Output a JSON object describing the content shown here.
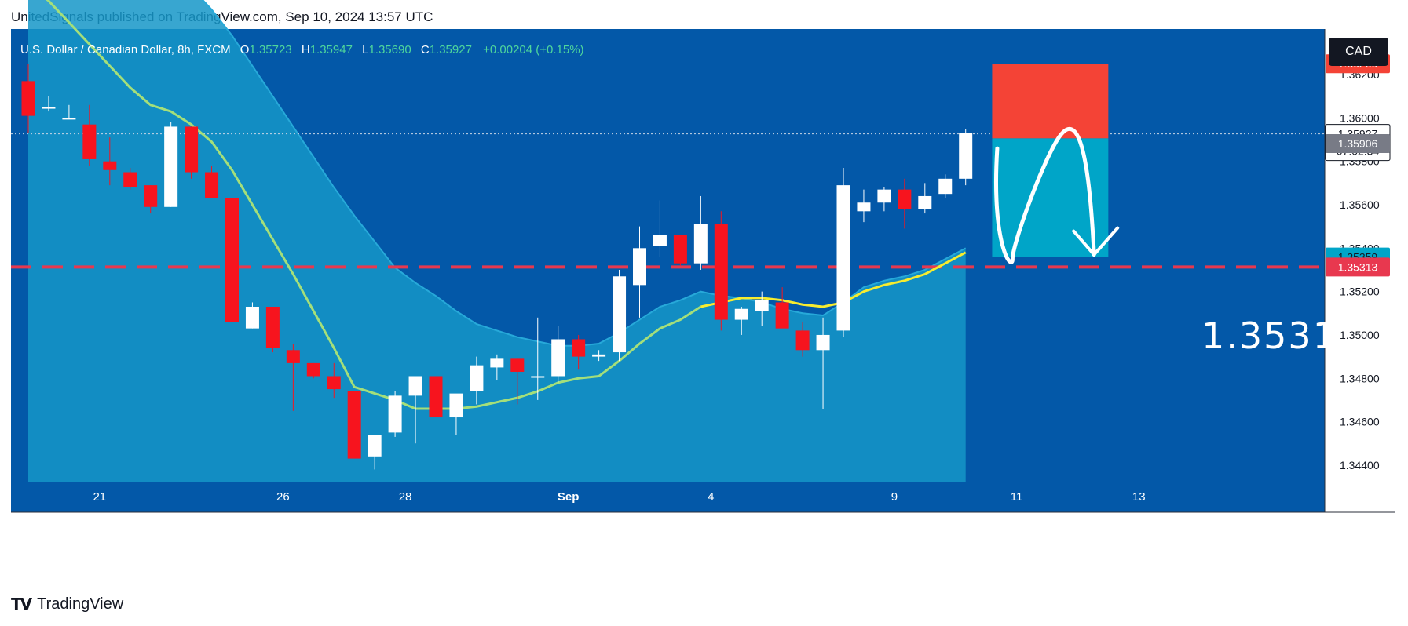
{
  "header": {
    "published_line": "UnitedSignals published on TradingView.com, Sep 10, 2024 13:57 UTC"
  },
  "legend": {
    "symbol": "U.S. Dollar / Canadian Dollar, 8h, FXCM",
    "o_label": "O",
    "o_value": "1.35723",
    "h_label": "H",
    "h_value": "1.35947",
    "l_label": "L",
    "l_value": "1.35690",
    "c_label": "C",
    "c_value": "1.35927",
    "change": "+0.00204 (+0.15%)"
  },
  "currency_button": "CAD",
  "footer": {
    "logo": "TV",
    "name": "TradingView"
  },
  "colors": {
    "background": "#0358a8",
    "band_fill": "#1597c8",
    "up_candle": "#ffffff",
    "down_candle": "#f7141e",
    "ma_green": "#a4df7a",
    "ma_yellow": "#f7ec2f",
    "stop_zone": "#f44336",
    "target_zone": "#00a5c8",
    "dashed_level": "#e8384f"
  },
  "chart_data": {
    "type": "candlestick",
    "y_ticks": [
      "1.34400",
      "1.34600",
      "1.34800",
      "1.35000",
      "1.35200",
      "1.35400",
      "1.35600",
      "1.35800",
      "1.36000",
      "1.36200"
    ],
    "x_ticks": [
      {
        "label": "21",
        "bar": 3.5
      },
      {
        "label": "26",
        "bar": 12.5
      },
      {
        "label": "28",
        "bar": 18.5
      },
      {
        "label": "Sep",
        "bar": 26.5
      },
      {
        "label": "4",
        "bar": 33.5
      },
      {
        "label": "9",
        "bar": 42.5
      },
      {
        "label": "11",
        "bar": 48.5
      },
      {
        "label": "13",
        "bar": 54.5
      }
    ],
    "candles": [
      {
        "o": 1.3617,
        "h": 1.3625,
        "l": 1.3593,
        "c": 1.3601
      },
      {
        "o": 1.3605,
        "h": 1.361,
        "l": 1.3603,
        "c": 1.3605
      },
      {
        "o": 1.36,
        "h": 1.3606,
        "l": 1.36,
        "c": 1.36
      },
      {
        "o": 1.3597,
        "h": 1.3606,
        "l": 1.3578,
        "c": 1.3581
      },
      {
        "o": 1.358,
        "h": 1.3591,
        "l": 1.3569,
        "c": 1.3576
      },
      {
        "o": 1.3575,
        "h": 1.3577,
        "l": 1.3567,
        "c": 1.3568
      },
      {
        "o": 1.3569,
        "h": 1.3569,
        "l": 1.3556,
        "c": 1.3559
      },
      {
        "o": 1.3559,
        "h": 1.3598,
        "l": 1.3559,
        "c": 1.3596
      },
      {
        "o": 1.3596,
        "h": 1.3596,
        "l": 1.3572,
        "c": 1.3575
      },
      {
        "o": 1.3575,
        "h": 1.3578,
        "l": 1.3563,
        "c": 1.3563
      },
      {
        "o": 1.3563,
        "h": 1.3563,
        "l": 1.3501,
        "c": 1.3506
      },
      {
        "o": 1.3503,
        "h": 1.3515,
        "l": 1.3503,
        "c": 1.3513
      },
      {
        "o": 1.3513,
        "h": 1.3513,
        "l": 1.3492,
        "c": 1.3494
      },
      {
        "o": 1.3493,
        "h": 1.3496,
        "l": 1.3465,
        "c": 1.3487
      },
      {
        "o": 1.3487,
        "h": 1.3487,
        "l": 1.348,
        "c": 1.3481
      },
      {
        "o": 1.3481,
        "h": 1.3487,
        "l": 1.3471,
        "c": 1.3475
      },
      {
        "o": 1.3474,
        "h": 1.3474,
        "l": 1.3443,
        "c": 1.3443
      },
      {
        "o": 1.3444,
        "h": 1.3454,
        "l": 1.3438,
        "c": 1.3454
      },
      {
        "o": 1.3455,
        "h": 1.3474,
        "l": 1.3453,
        "c": 1.3472
      },
      {
        "o": 1.3472,
        "h": 1.3481,
        "l": 1.345,
        "c": 1.3481
      },
      {
        "o": 1.3481,
        "h": 1.3481,
        "l": 1.3462,
        "c": 1.3462
      },
      {
        "o": 1.3462,
        "h": 1.3471,
        "l": 1.3454,
        "c": 1.3473
      },
      {
        "o": 1.3474,
        "h": 1.349,
        "l": 1.3468,
        "c": 1.3486
      },
      {
        "o": 1.3485,
        "h": 1.3491,
        "l": 1.3479,
        "c": 1.3489
      },
      {
        "o": 1.3489,
        "h": 1.3489,
        "l": 1.3468,
        "c": 1.3483
      },
      {
        "o": 1.3481,
        "h": 1.3508,
        "l": 1.347,
        "c": 1.3481
      },
      {
        "o": 1.3481,
        "h": 1.3504,
        "l": 1.3478,
        "c": 1.3498
      },
      {
        "o": 1.3498,
        "h": 1.35,
        "l": 1.3484,
        "c": 1.349
      },
      {
        "o": 1.349,
        "h": 1.3493,
        "l": 1.3488,
        "c": 1.3491
      },
      {
        "o": 1.3492,
        "h": 1.353,
        "l": 1.3488,
        "c": 1.3527
      },
      {
        "o": 1.3523,
        "h": 1.355,
        "l": 1.3508,
        "c": 1.354
      },
      {
        "o": 1.3541,
        "h": 1.3562,
        "l": 1.3536,
        "c": 1.3546
      },
      {
        "o": 1.3546,
        "h": 1.3546,
        "l": 1.3532,
        "c": 1.3533
      },
      {
        "o": 1.3533,
        "h": 1.3564,
        "l": 1.353,
        "c": 1.3551
      },
      {
        "o": 1.3551,
        "h": 1.3557,
        "l": 1.3502,
        "c": 1.3507
      },
      {
        "o": 1.3507,
        "h": 1.3513,
        "l": 1.35,
        "c": 1.3512
      },
      {
        "o": 1.3511,
        "h": 1.352,
        "l": 1.3504,
        "c": 1.3516
      },
      {
        "o": 1.3515,
        "h": 1.3522,
        "l": 1.3504,
        "c": 1.3503
      },
      {
        "o": 1.3502,
        "h": 1.3506,
        "l": 1.349,
        "c": 1.3493
      },
      {
        "o": 1.3493,
        "h": 1.3508,
        "l": 1.3466,
        "c": 1.35
      },
      {
        "o": 1.3502,
        "h": 1.3577,
        "l": 1.3499,
        "c": 1.3569
      },
      {
        "o": 1.3557,
        "h": 1.3567,
        "l": 1.3552,
        "c": 1.3561
      },
      {
        "o": 1.3561,
        "h": 1.3568,
        "l": 1.3557,
        "c": 1.3567
      },
      {
        "o": 1.3567,
        "h": 1.3572,
        "l": 1.3549,
        "c": 1.3558
      },
      {
        "o": 1.3558,
        "h": 1.357,
        "l": 1.3556,
        "c": 1.3564
      },
      {
        "o": 1.3565,
        "h": 1.3574,
        "l": 1.3563,
        "c": 1.3572
      },
      {
        "o": 1.3572,
        "h": 1.3595,
        "l": 1.3569,
        "c": 1.3593
      }
    ],
    "ma_green": [
      1.3661,
      1.3654,
      1.3644,
      1.3634,
      1.3624,
      1.3614,
      1.3606,
      1.3603,
      1.3597,
      1.3589,
      1.3576,
      1.356,
      1.3544,
      1.3528,
      1.3511,
      1.3494,
      1.3476,
      1.3473,
      1.347,
      1.3466,
      1.3466,
      1.3466,
      1.3467,
      1.3469,
      1.3471,
      1.3474,
      1.3478,
      1.348,
      1.3481,
      1.3488,
      1.3496,
      1.3503,
      1.3507,
      1.3513,
      1.3515,
      1.3517,
      1.3517,
      1.3516,
      1.3514,
      1.3513,
      1.3515,
      1.352,
      1.3523,
      1.3525,
      1.3528,
      1.3533,
      1.3538
    ],
    "ma_yellow_from_bar": 33,
    "band_upper": [
      1.367,
      1.3668,
      1.3666,
      1.3664,
      1.3663,
      1.3662,
      1.3662,
      1.3661,
      1.366,
      1.365,
      1.3638,
      1.3624,
      1.361,
      1.3596,
      1.3582,
      1.3568,
      1.3555,
      1.3543,
      1.3531,
      1.3524,
      1.3518,
      1.3511,
      1.3505,
      1.3502,
      1.3499,
      1.3497,
      1.3495,
      1.3495,
      1.3496,
      1.3501,
      1.3507,
      1.3513,
      1.3516,
      1.352,
      1.3518,
      1.3517,
      1.3515,
      1.3512,
      1.351,
      1.3509,
      1.3515,
      1.3522,
      1.3525,
      1.3527,
      1.353,
      1.3535,
      1.354
    ],
    "current_price": {
      "value": "1.35927",
      "countdown": "07:02:34",
      "price": 1.35927
    },
    "position_tool": {
      "entry": 1.35906,
      "stop": 1.3625,
      "target": 1.35359,
      "entry_label": "1.35906",
      "stop_label": "1.36250",
      "target_label": "1.35359",
      "start_bar": 47.3,
      "end_bar": 53.0
    },
    "dashed_level": {
      "value": 1.35313,
      "label": "1.35313"
    },
    "annotation": "1.3531",
    "ylim": [
      1.3432,
      1.3641
    ]
  }
}
